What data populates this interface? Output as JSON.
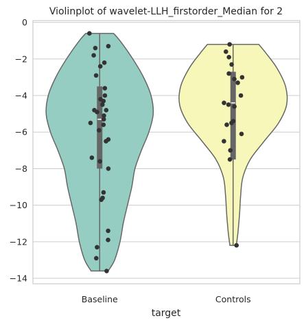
{
  "chart_data": {
    "type": "violin",
    "title": "Violinplot of wavelet-LLH_firstorder_Median for 2",
    "xlabel": "target",
    "ylabel": "",
    "categories": [
      "Baseline",
      "Controls"
    ],
    "ylim": [
      -14.3,
      0.1
    ],
    "yticks": [
      0,
      -2,
      -4,
      -6,
      -8,
      -10,
      -12,
      -14
    ],
    "ytick_labels": [
      "0",
      "−2",
      "−4",
      "−6",
      "−8",
      "−10",
      "−12",
      "−14"
    ],
    "grid": "horizontal",
    "colors": {
      "Baseline": "#96cdc3",
      "Controls": "#f7f7ba",
      "outline": "#666666",
      "points": "#333333"
    },
    "violins": [
      {
        "name": "Baseline",
        "min": -13.6,
        "max": -0.6,
        "q1": -8.0,
        "median": -5.3,
        "q3": -3.5,
        "density_profile": [
          [
            -13.6,
            0.16
          ],
          [
            -13.0,
            0.28
          ],
          [
            -12.0,
            0.38
          ],
          [
            -11.0,
            0.44
          ],
          [
            -10.0,
            0.52
          ],
          [
            -9.0,
            0.6
          ],
          [
            -8.0,
            0.66
          ],
          [
            -7.0,
            0.78
          ],
          [
            -6.0,
            0.92
          ],
          [
            -5.0,
            1.0
          ],
          [
            -4.0,
            0.96
          ],
          [
            -3.0,
            0.82
          ],
          [
            -2.0,
            0.62
          ],
          [
            -1.0,
            0.38
          ],
          [
            -0.6,
            0.26
          ]
        ],
        "points": [
          -0.6,
          -1.3,
          -1.4,
          -1.8,
          -2.2,
          -2.4,
          -2.9,
          -3.6,
          -4.0,
          -4.2,
          -4.3,
          -4.5,
          -4.8,
          -4.8,
          -4.9,
          -5.1,
          -5.3,
          -5.5,
          -5.6,
          -5.9,
          -6.4,
          -6.5,
          -7.4,
          -7.6,
          -8.0,
          -9.3,
          -9.6,
          -9.7,
          -11.4,
          -11.9,
          -12.3,
          -12.9,
          -13.6
        ]
      },
      {
        "name": "Controls",
        "min": -12.2,
        "max": -1.2,
        "q1": -7.5,
        "median": -4.4,
        "q3": -2.7,
        "density_profile": [
          [
            -12.2,
            0.06
          ],
          [
            -11.5,
            0.09
          ],
          [
            -10.5,
            0.12
          ],
          [
            -9.5,
            0.14
          ],
          [
            -8.5,
            0.18
          ],
          [
            -7.5,
            0.32
          ],
          [
            -6.5,
            0.58
          ],
          [
            -5.5,
            0.85
          ],
          [
            -4.5,
            1.0
          ],
          [
            -3.5,
            0.98
          ],
          [
            -2.5,
            0.82
          ],
          [
            -1.7,
            0.62
          ],
          [
            -1.2,
            0.48
          ]
        ],
        "points": [
          -1.2,
          -1.6,
          -1.9,
          -2.3,
          -2.8,
          -3.0,
          -3.1,
          -3.3,
          -4.0,
          -4.4,
          -4.5,
          -4.6,
          -5.4,
          -5.5,
          -5.6,
          -6.1,
          -6.5,
          -7.0,
          -7.5,
          -12.2
        ]
      }
    ]
  }
}
